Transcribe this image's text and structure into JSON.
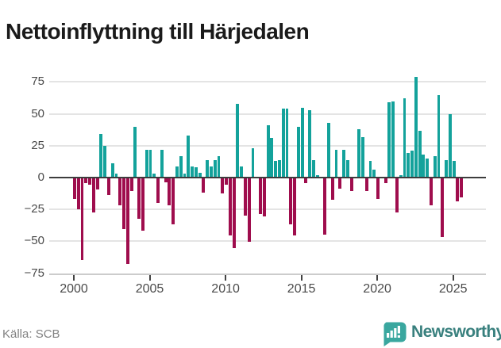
{
  "title": "Nettoinflyttning till Härjedalen",
  "footer": {
    "source_label": "Källa: SCB",
    "brand": "Newsworthy"
  },
  "chart_data": {
    "type": "bar",
    "title": "Nettoinflyttning till Härjedalen",
    "frequency": "quarterly",
    "x_start": "2000-Q1",
    "x_end": "2025-Q3",
    "x_tick_labels": [
      "2000",
      "2005",
      "2010",
      "2015",
      "2020",
      "2025"
    ],
    "x_tick_quarter_indices": [
      0,
      20,
      40,
      60,
      80,
      100
    ],
    "y_ticks": [
      75,
      50,
      25,
      0,
      -25,
      -50,
      -75
    ],
    "y_tick_labels": [
      "75",
      "50",
      "25",
      "0",
      "−25",
      "−50",
      "−75"
    ],
    "ylim": [
      -82,
      86
    ],
    "grid": true,
    "legend": "none",
    "colors": {
      "positive": "#13a29b",
      "negative": "#9f0d4d"
    },
    "values": [
      -16,
      -24,
      -64,
      -4,
      -5,
      -27,
      -9,
      34,
      25,
      -13,
      11,
      3,
      -21,
      -40,
      -67,
      -10,
      40,
      -32,
      -41,
      22,
      22,
      3,
      -19,
      22,
      -3,
      -21,
      -36,
      9,
      17,
      3,
      33,
      9,
      8,
      4,
      -11,
      14,
      9,
      14,
      17,
      -12,
      -5,
      -45,
      -55,
      58,
      9,
      -29,
      -50,
      23,
      0,
      -28,
      -30,
      41,
      31,
      13,
      14,
      54,
      54,
      -36,
      -45,
      40,
      55,
      -4,
      53,
      14,
      2,
      0,
      -44,
      43,
      -17,
      22,
      -8,
      22,
      14,
      -10,
      0,
      38,
      32,
      -10,
      13,
      6,
      -16,
      0,
      -4,
      59,
      60,
      -27,
      2,
      62,
      19,
      21,
      79,
      37,
      18,
      15,
      -21,
      17,
      65,
      -46,
      14,
      50,
      13,
      -18,
      -15
    ]
  }
}
